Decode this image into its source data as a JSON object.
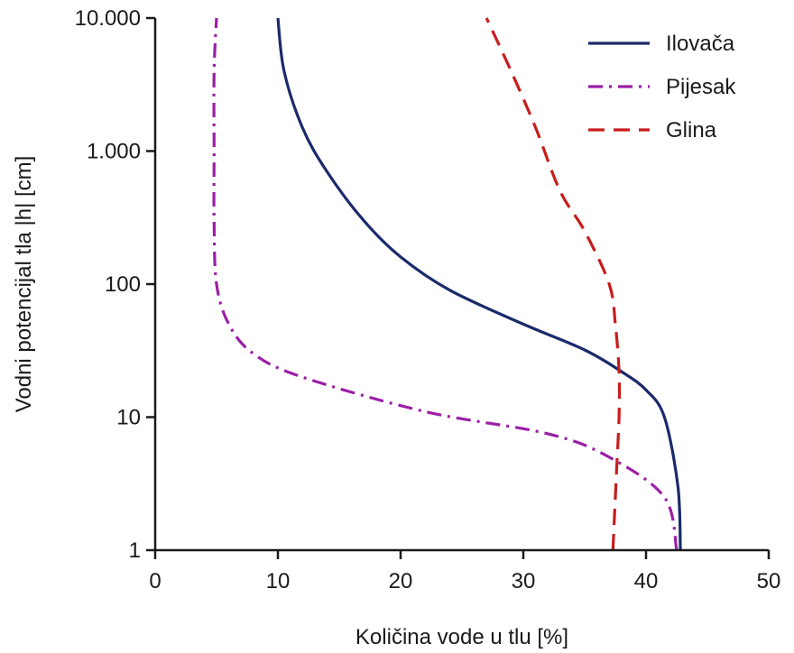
{
  "chart_data": {
    "type": "line",
    "title": "",
    "xlabel": "Količina vode u tlu [%]",
    "ylabel": "Vodni potencijal tla |h| [cm]",
    "xlim": [
      0,
      50
    ],
    "ylim": [
      1,
      10000
    ],
    "y_scale": "log",
    "x_ticks": [
      0,
      10,
      20,
      30,
      40,
      50
    ],
    "x_tick_labels": [
      "0",
      "10",
      "20",
      "30",
      "40",
      "50"
    ],
    "y_ticks": [
      1,
      10,
      100,
      1000,
      10000
    ],
    "y_tick_labels": [
      "1",
      "10",
      "100",
      "1.000",
      "10.000"
    ],
    "grid": false,
    "legend_position": "top-right",
    "series": [
      {
        "name": "Ilovača",
        "color": "#1b2a6b",
        "line_style": "solid",
        "points": [
          [
            42.8,
            1
          ],
          [
            42.6,
            3
          ],
          [
            41.5,
            10
          ],
          [
            40.0,
            16
          ],
          [
            38.0,
            22
          ],
          [
            35.0,
            32
          ],
          [
            30.0,
            50
          ],
          [
            24.0,
            90
          ],
          [
            20.0,
            160
          ],
          [
            17.0,
            300
          ],
          [
            14.0,
            700
          ],
          [
            12.0,
            1500
          ],
          [
            10.5,
            4000
          ],
          [
            10.0,
            10000
          ]
        ]
      },
      {
        "name": "Pijesak",
        "color": "#9b1fa6",
        "line_style": "dashdot",
        "points": [
          [
            42.5,
            1
          ],
          [
            41.5,
            2.5
          ],
          [
            37.0,
            5
          ],
          [
            32.0,
            7.5
          ],
          [
            22.0,
            11
          ],
          [
            12.0,
            20
          ],
          [
            8.0,
            30
          ],
          [
            6.0,
            50
          ],
          [
            5.0,
            100
          ],
          [
            4.8,
            300
          ],
          [
            4.8,
            1000
          ],
          [
            4.8,
            4000
          ],
          [
            5.0,
            10000
          ]
        ]
      },
      {
        "name": "Glina",
        "color": "#c81c1c",
        "line_style": "dashed",
        "points": [
          [
            37.3,
            1
          ],
          [
            37.6,
            4
          ],
          [
            37.8,
            10
          ],
          [
            37.8,
            22
          ],
          [
            37.5,
            50
          ],
          [
            37.0,
            100
          ],
          [
            35.0,
            250
          ],
          [
            33.0,
            500
          ],
          [
            31.0,
            1500
          ],
          [
            29.0,
            4000
          ],
          [
            27.0,
            10000
          ]
        ]
      }
    ]
  }
}
